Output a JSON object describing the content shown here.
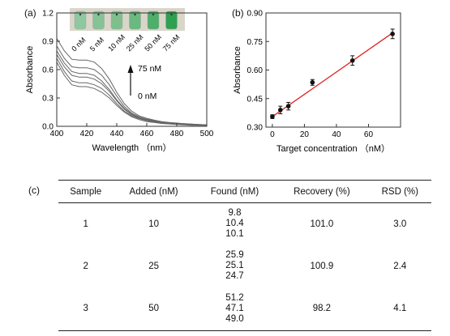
{
  "panel_labels": {
    "a": "(a)",
    "b": "(b)",
    "c": "(c)"
  },
  "chart_data": [
    {
      "id": "a",
      "type": "line",
      "xlabel": "Wavelength （nm）",
      "ylabel": "Absorbance",
      "xlim": [
        400,
        500
      ],
      "ylim": [
        0.0,
        1.2
      ],
      "xticks": [
        400,
        420,
        440,
        460,
        480,
        500
      ],
      "yticks": [
        0.0,
        0.3,
        0.6,
        0.9,
        1.2
      ],
      "ytick_labels": [
        "0.0",
        "0.3",
        "0.6",
        "0.9",
        "1.2"
      ],
      "annotations": {
        "arrow_top": "75 nM",
        "arrow_bottom": "0 nM"
      },
      "inset_vials": [
        "0 nM",
        "5 nM",
        "10 nM",
        "25 nM",
        "50 nM",
        "75 nM"
      ],
      "vial_colors": [
        "#8fc7a0",
        "#86c295",
        "#7fbf8e",
        "#6ab97f",
        "#4eae6a",
        "#2fa050"
      ],
      "line_color": "#666666",
      "x": [
        400,
        405,
        410,
        415,
        420,
        425,
        430,
        435,
        440,
        445,
        450,
        455,
        460,
        465,
        470,
        475,
        480,
        485,
        490,
        495,
        500
      ],
      "series": [
        {
          "values": [
            0.68,
            0.54,
            0.44,
            0.42,
            0.42,
            0.4,
            0.36,
            0.3,
            0.22,
            0.15,
            0.1,
            0.07,
            0.05,
            0.04,
            0.03,
            0.025,
            0.02,
            0.015,
            0.01,
            0.01,
            0.01
          ]
        },
        {
          "values": [
            0.72,
            0.58,
            0.48,
            0.46,
            0.46,
            0.44,
            0.4,
            0.33,
            0.24,
            0.16,
            0.11,
            0.08,
            0.06,
            0.045,
            0.035,
            0.03,
            0.025,
            0.02,
            0.015,
            0.012,
            0.01
          ]
        },
        {
          "values": [
            0.76,
            0.63,
            0.54,
            0.52,
            0.52,
            0.5,
            0.45,
            0.37,
            0.27,
            0.18,
            0.12,
            0.085,
            0.065,
            0.05,
            0.04,
            0.032,
            0.027,
            0.022,
            0.018,
            0.014,
            0.012
          ]
        },
        {
          "values": [
            0.8,
            0.67,
            0.58,
            0.56,
            0.56,
            0.54,
            0.48,
            0.39,
            0.28,
            0.19,
            0.13,
            0.09,
            0.07,
            0.055,
            0.042,
            0.035,
            0.03,
            0.025,
            0.02,
            0.016,
            0.013
          ]
        },
        {
          "values": [
            0.85,
            0.72,
            0.63,
            0.62,
            0.62,
            0.6,
            0.54,
            0.44,
            0.32,
            0.21,
            0.14,
            0.1,
            0.075,
            0.06,
            0.045,
            0.038,
            0.032,
            0.027,
            0.022,
            0.018,
            0.015
          ]
        },
        {
          "values": [
            0.93,
            0.8,
            0.71,
            0.7,
            0.7,
            0.68,
            0.61,
            0.5,
            0.36,
            0.24,
            0.16,
            0.11,
            0.085,
            0.065,
            0.05,
            0.04,
            0.034,
            0.028,
            0.023,
            0.019,
            0.016
          ]
        }
      ]
    },
    {
      "id": "b",
      "type": "scatter",
      "xlabel": "Target concentration （nM）",
      "ylabel": "Absorbance",
      "xlim": [
        -4,
        80
      ],
      "ylim": [
        0.3,
        0.9
      ],
      "xticks": [
        0,
        20,
        40,
        60
      ],
      "yticks": [
        0.3,
        0.45,
        0.6,
        0.75,
        0.9
      ],
      "ytick_labels": [
        "0.30",
        "0.45",
        "0.60",
        "0.75",
        "0.90"
      ],
      "fit_line": {
        "x": [
          0,
          75
        ],
        "y": [
          0.355,
          0.795
        ],
        "color": "#e02020"
      },
      "points": {
        "x": [
          0,
          5,
          10,
          25,
          50,
          75
        ],
        "y": [
          0.355,
          0.39,
          0.41,
          0.535,
          0.65,
          0.79
        ],
        "err": [
          0.01,
          0.02,
          0.02,
          0.015,
          0.025,
          0.025
        ]
      }
    }
  ],
  "table": {
    "headers": [
      "Sample",
      "Added (nM)",
      "Found (nM)",
      "Recovery (%)",
      "RSD (%)"
    ],
    "rows": [
      {
        "sample": "1",
        "added": "10",
        "found": [
          "9.8",
          "10.4",
          "10.1"
        ],
        "recovery": "101.0",
        "rsd": "3.0"
      },
      {
        "sample": "2",
        "added": "25",
        "found": [
          "25.9",
          "25.1",
          "24.7"
        ],
        "recovery": "100.9",
        "rsd": "2.4"
      },
      {
        "sample": "3",
        "added": "50",
        "found": [
          "51.2",
          "47.1",
          "49.0"
        ],
        "recovery": "98.2",
        "rsd": "4.1"
      }
    ]
  }
}
